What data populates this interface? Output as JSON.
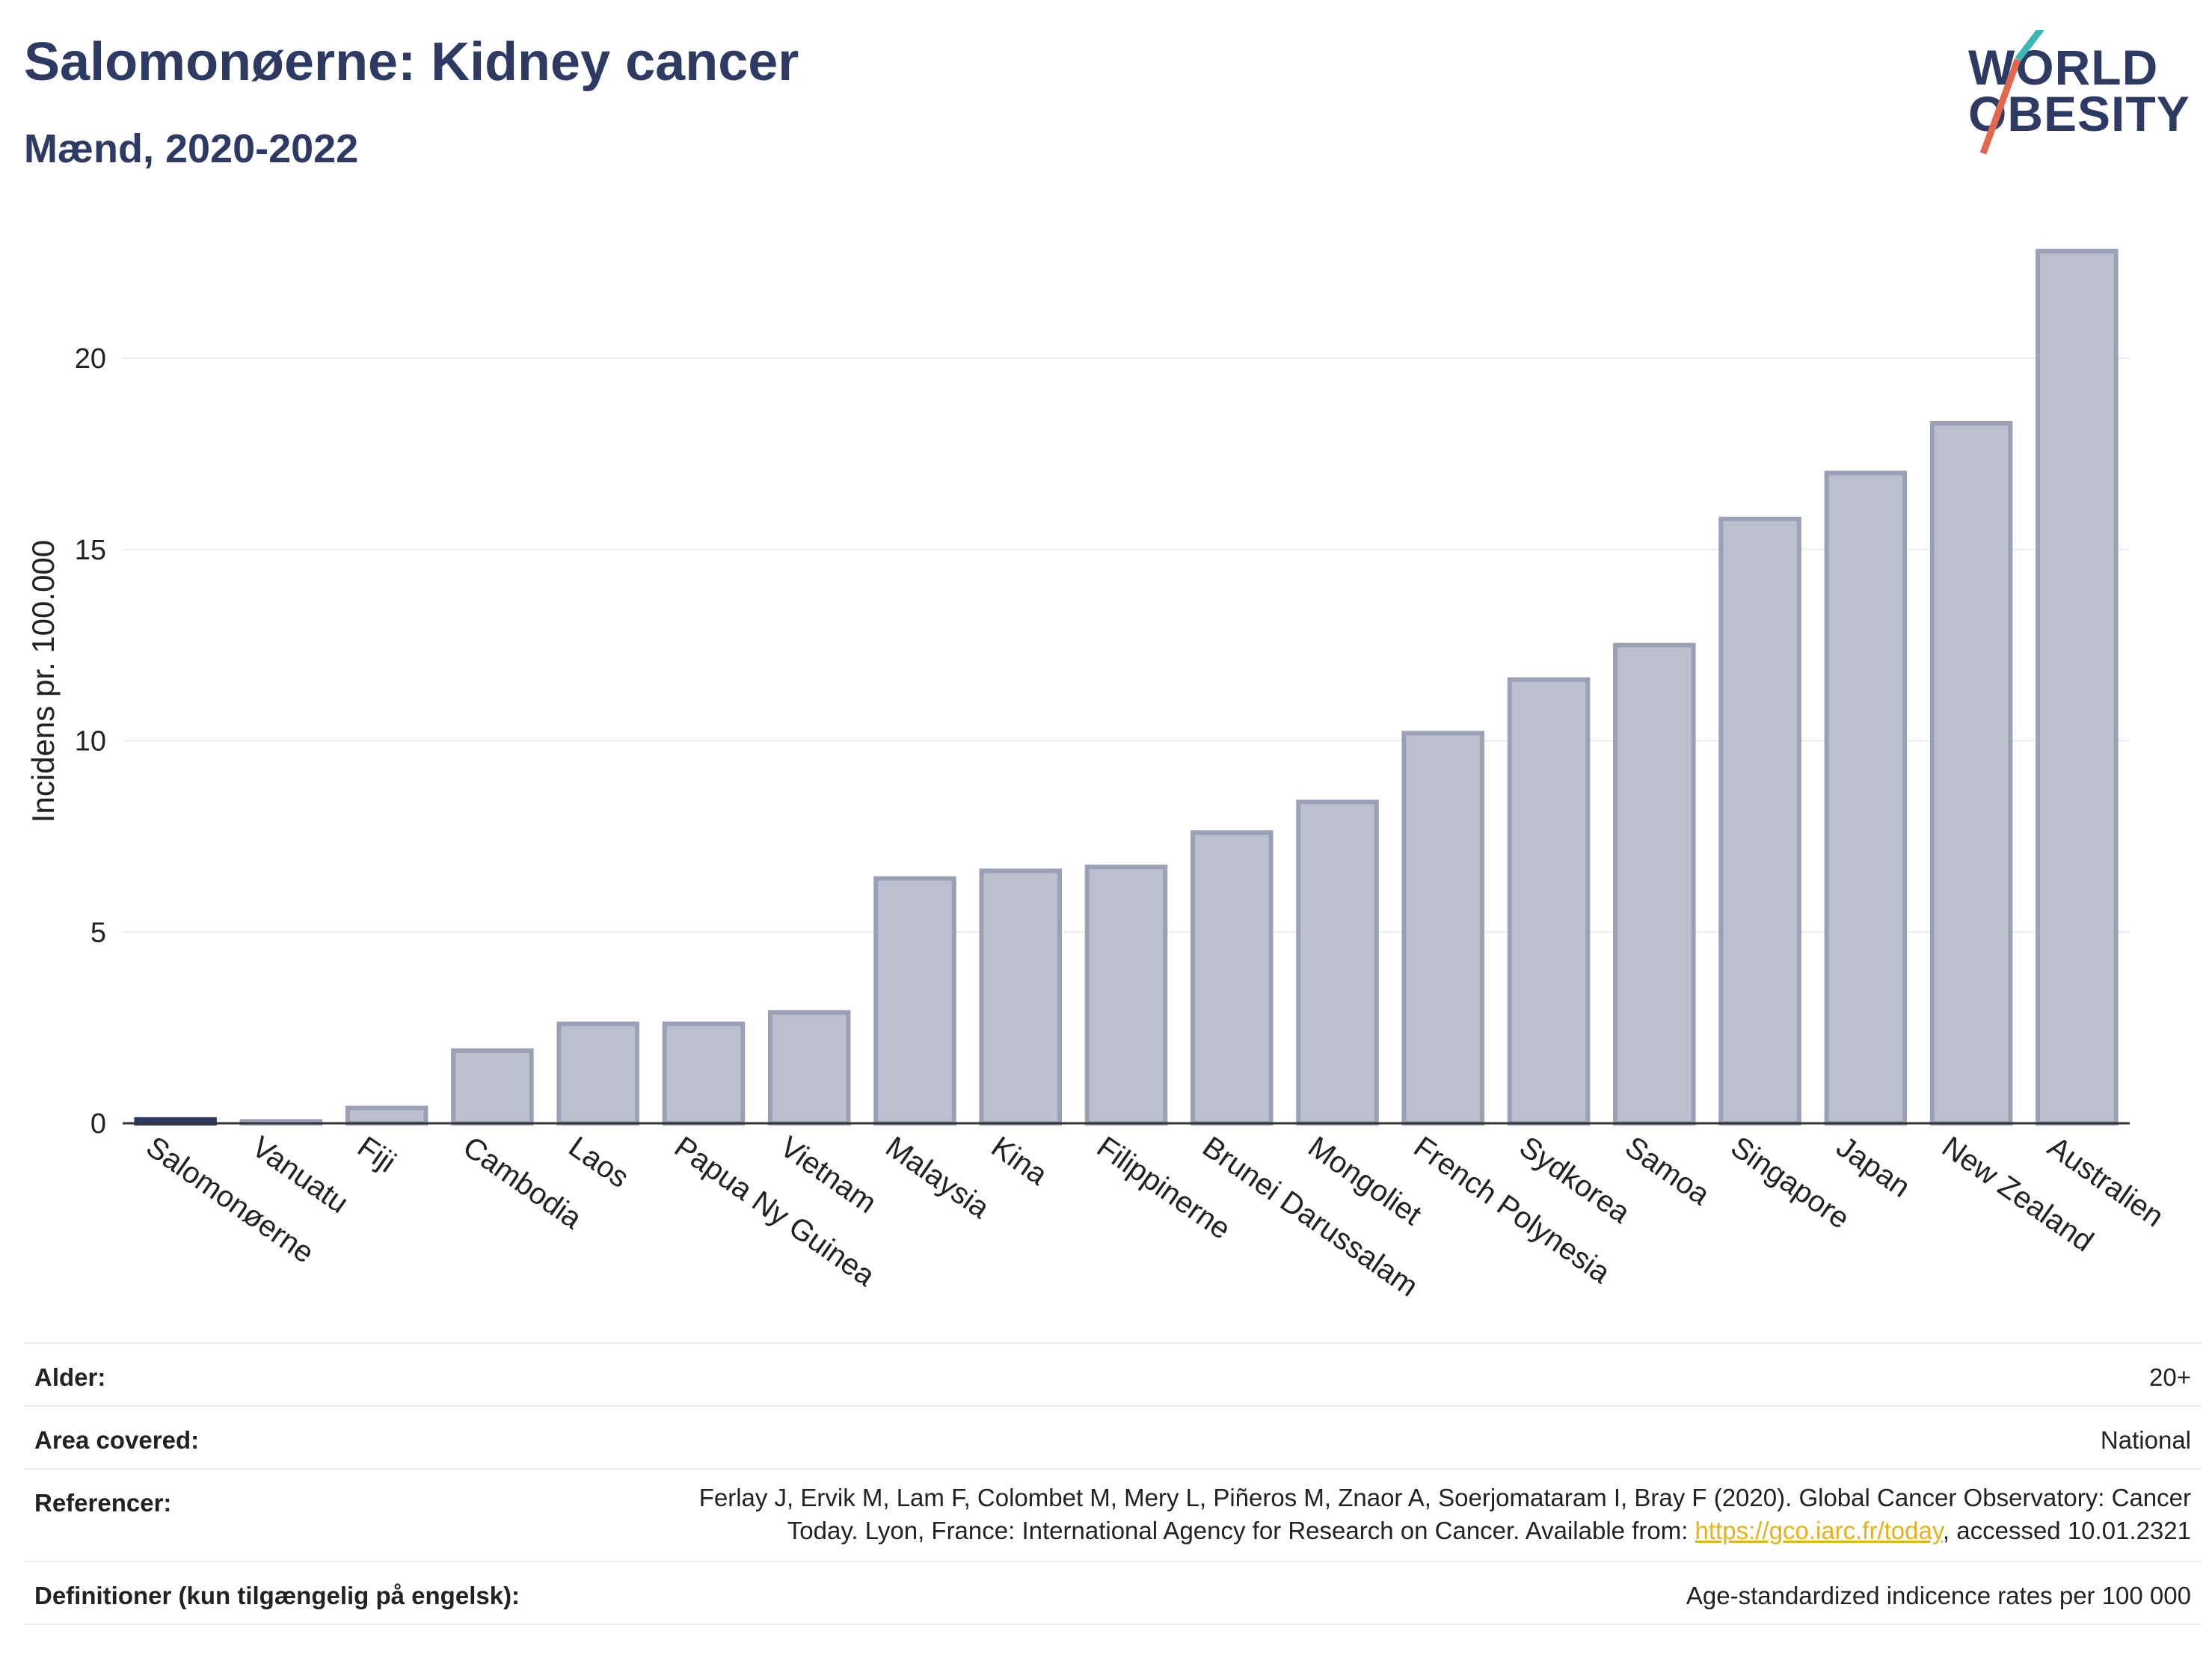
{
  "header": {
    "title": "Salomonøerne: Kidney cancer",
    "subtitle": "Mænd, 2020-2022"
  },
  "logo": {
    "line1": "WORLD",
    "line2": "OBESITY",
    "accent_teal": "#3bb8b4",
    "accent_red": "#e3674f"
  },
  "colors": {
    "bar_fill": "#bcc0ce",
    "bar_stroke": "#9aa0b6",
    "highlight": "#2d3a64",
    "grid": "#e8ecef"
  },
  "chart_data": {
    "type": "bar",
    "ylabel": "Incidens pr. 100.000",
    "ylim": [
      0,
      23.5
    ],
    "yticks": [
      0,
      5,
      10,
      15,
      20
    ],
    "grid": true,
    "categories": [
      "Salomonøerne",
      "Vanuatu",
      "Fiji",
      "Cambodia",
      "Laos",
      "Papua Ny Guinea",
      "Vietnam",
      "Malaysia",
      "Kina",
      "Filippinerne",
      "Brunei Darussalam",
      "Mongoliet",
      "French Polynesia",
      "Sydkorea",
      "Samoa",
      "Singapore",
      "Japan",
      "New Zealand",
      "Australien"
    ],
    "values": [
      0.1,
      0.05,
      0.4,
      1.9,
      2.6,
      2.6,
      2.9,
      6.4,
      6.6,
      6.7,
      7.6,
      8.4,
      10.2,
      11.6,
      12.5,
      15.8,
      17.0,
      18.3,
      22.8
    ],
    "highlight": "Salomonøerne"
  },
  "meta": {
    "rows": [
      {
        "label": "Alder:",
        "value": "20+"
      },
      {
        "label": "Area covered:",
        "value": "National"
      },
      {
        "label": "Referencer:",
        "value_line1": "Ferlay J, Ervik M, Lam F, Colombet M, Mery L, Piñeros M, Znaor A, Soerjomataram I, Bray F (2020). Global Cancer Observatory: Cancer",
        "value_line2_pre": "Today. Lyon, France: International Agency for Research on Cancer. Available from: ",
        "link": "https://gco.iarc.fr/today",
        "value_line2_post": ", accessed 10.01.2321"
      },
      {
        "label": "Definitioner (kun tilgængelig på engelsk):",
        "value": "Age-standardized indicence rates per 100 000"
      }
    ]
  }
}
